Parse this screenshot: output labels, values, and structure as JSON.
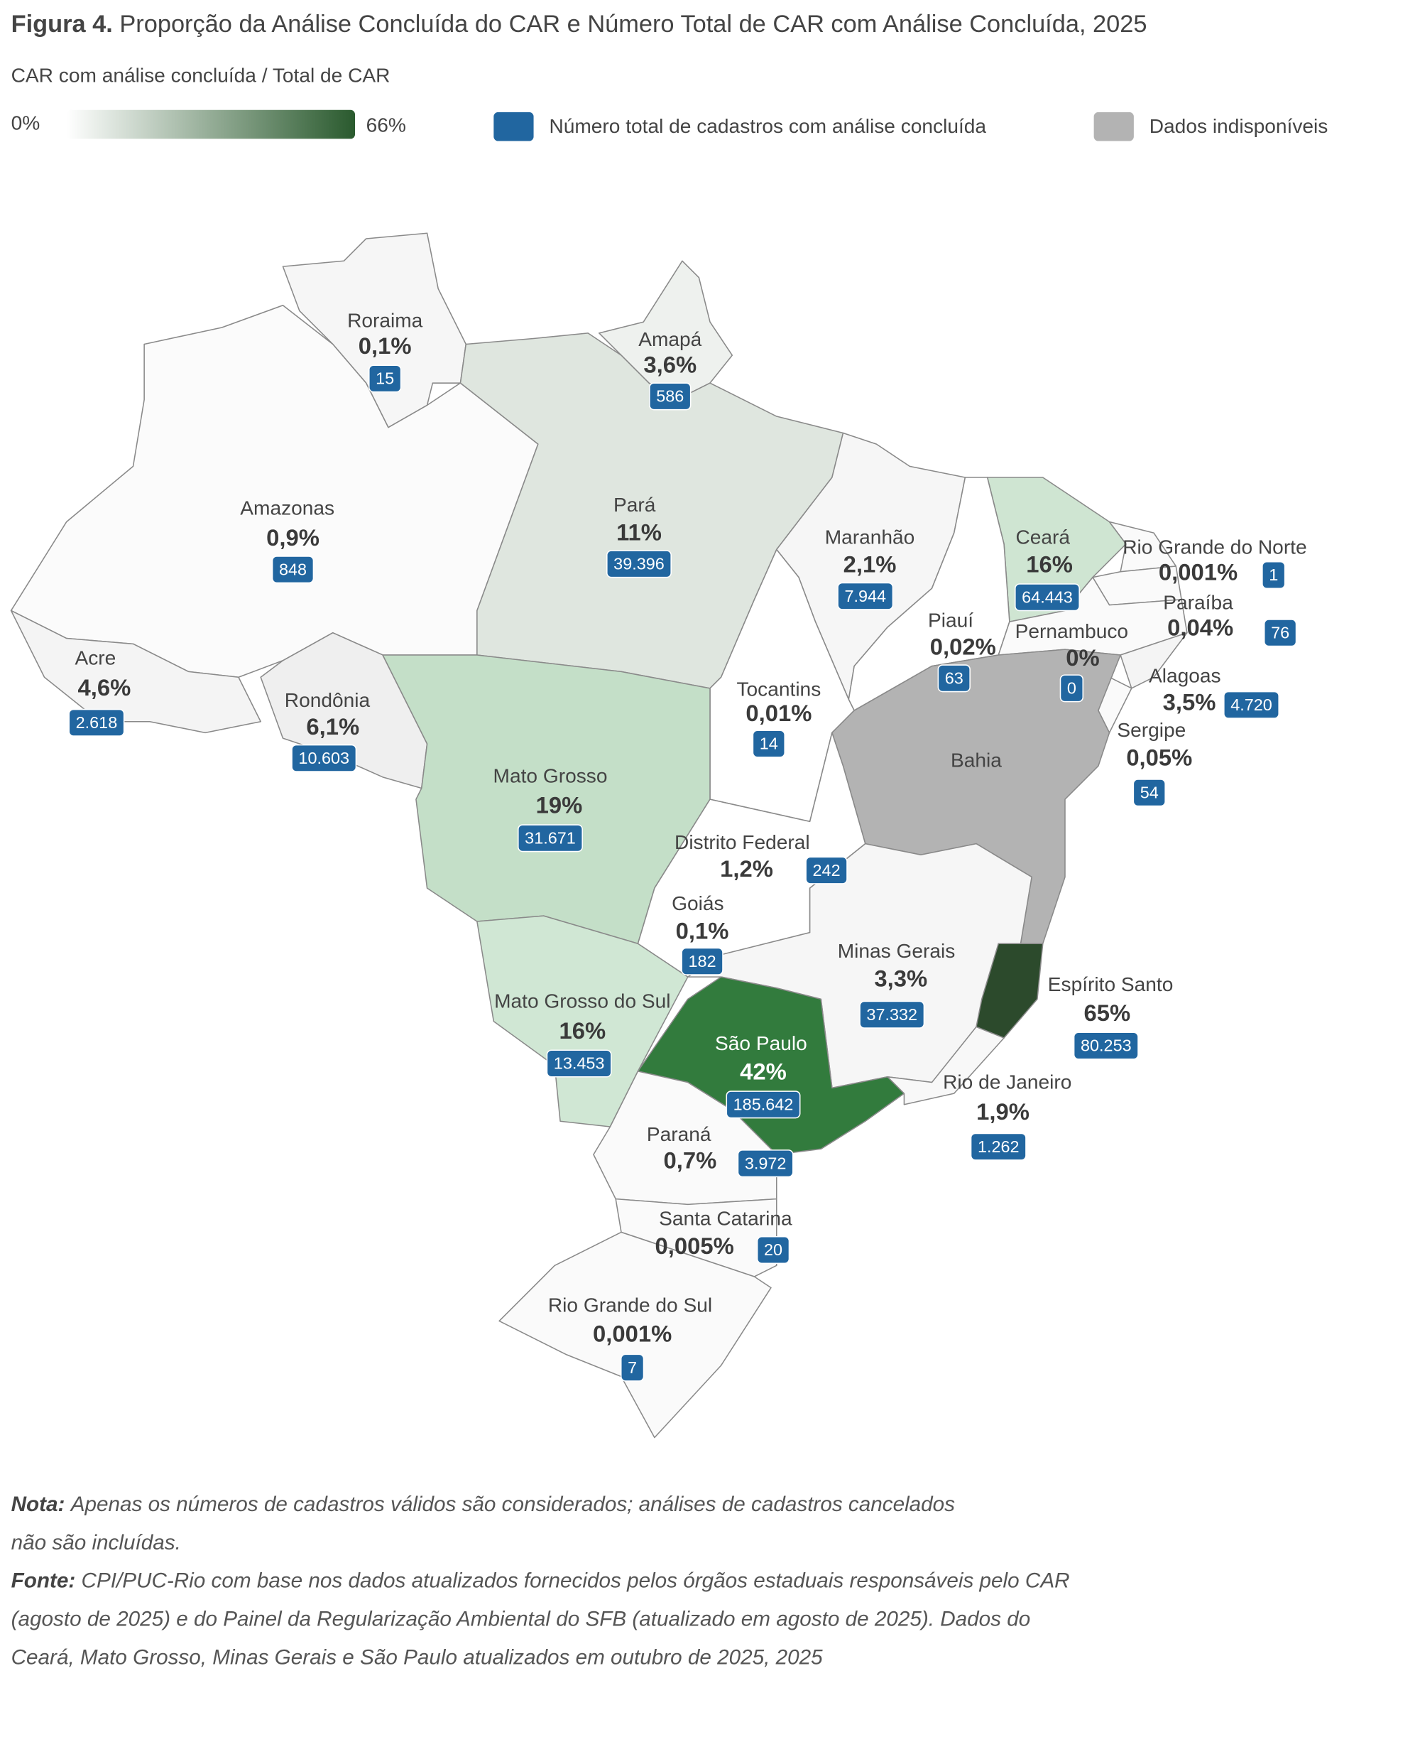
{
  "header": {
    "prefix": "Figura 4.",
    "title": "Proporção da Análise Concluída do CAR e Número Total de CAR com Análise Concluída, 2025",
    "subtitle": "CAR com análise concluída / Total de CAR"
  },
  "legend": {
    "scale_min": "0%",
    "scale_max": "66%",
    "scale_colors": [
      "#ffffff",
      "#2a5a2e"
    ],
    "total": {
      "label": "Número total de cadastros com análise concluída",
      "color": "#2166a0"
    },
    "missing": {
      "label": "Dados indisponíveis",
      "color": "#b3b3b3"
    }
  },
  "states": [
    {
      "name": "Roraima",
      "share": "0,1%",
      "count": "15",
      "fill": "#f6f6f6"
    },
    {
      "name": "Amapá",
      "share": "3,6%",
      "count": "586",
      "fill": "#eef1ee"
    },
    {
      "name": "Amazonas",
      "share": "0,9%",
      "count": "848",
      "fill": "#fbfbfb"
    },
    {
      "name": "Pará",
      "share": "11%",
      "count": "39.396",
      "fill": "#dfe6df"
    },
    {
      "name": "Maranhão",
      "share": "2,1%",
      "count": "7.944",
      "fill": "#f6f6f6"
    },
    {
      "name": "Ceará",
      "share": "16%",
      "count": "64.443",
      "fill": "#cfe5d2"
    },
    {
      "name": "Rio Grande do Norte",
      "share": "0,001%",
      "count": "1",
      "fill": "#fafafa"
    },
    {
      "name": "Paraíba",
      "share": "0,04%",
      "count": "76",
      "fill": "#fafafa"
    },
    {
      "name": "Piauí",
      "share": "0,02%",
      "count": "63",
      "fill": "#ffffff"
    },
    {
      "name": "Pernambuco",
      "share": "0%",
      "count": "0",
      "fill": "#fafafa"
    },
    {
      "name": "Alagoas",
      "share": "3,5%",
      "count": "4.720",
      "fill": "#f4f4f4"
    },
    {
      "name": "Sergipe",
      "share": "0,05%",
      "count": "54",
      "fill": "#fafafa"
    },
    {
      "name": "Tocantins",
      "share": "0,01%",
      "count": "14",
      "fill": "#ffffff"
    },
    {
      "name": "Acre",
      "share": "4,6%",
      "count": "2.618",
      "fill": "#f4f4f4"
    },
    {
      "name": "Rondônia",
      "share": "6,1%",
      "count": "10.603",
      "fill": "#efefef"
    },
    {
      "name": "Mato Grosso",
      "share": "19%",
      "count": "31.671",
      "fill": "#c4dfc8"
    },
    {
      "name": "Bahia",
      "fill": "#b3b3b3"
    },
    {
      "name": "Distrito Federal",
      "share": "1,2%",
      "count": "242",
      "fill": "#ffffff"
    },
    {
      "name": "Goiás",
      "share": "0,1%",
      "count": "182",
      "fill": "#ffffff"
    },
    {
      "name": "Minas Gerais",
      "share": "3,3%",
      "count": "37.332",
      "fill": "#f6f6f6"
    },
    {
      "name": "Espírito Santo",
      "share": "65%",
      "count": "80.253",
      "fill": "#2c4a2c"
    },
    {
      "name": "Mato Grosso do Sul",
      "share": "16%",
      "count": "13.453",
      "fill": "#d0e7d4"
    },
    {
      "name": "São Paulo",
      "share": "42%",
      "count": "185.642",
      "fill": "#327b3d"
    },
    {
      "name": "Rio de Janeiro",
      "share": "1,9%",
      "count": "1.262",
      "fill": "#f8f8f8"
    },
    {
      "name": "Paraná",
      "share": "0,7%",
      "count": "3.972",
      "fill": "#fafafa"
    },
    {
      "name": "Santa Catarina",
      "share": "0,005%",
      "count": "20",
      "fill": "#fafafa"
    },
    {
      "name": "Rio Grande do Sul",
      "share": "0,001%",
      "count": "7",
      "fill": "#fafafa"
    }
  ],
  "notes": {
    "note_label": "Nota:",
    "note_lines": [
      "Apenas os números de cadastros válidos são considerados; análises de cadastros cancelados",
      "não são incluídas."
    ],
    "source_label": "Fonte:",
    "source_lines": [
      "CPI/PUC-Rio com base nos dados atualizados fornecidos pelos órgãos estaduais responsáveis pelo CAR",
      "(agosto de 2025) e do Painel da Regularização Ambiental do SFB (atualizado em agosto de 2025). Dados do",
      "Ceará, Mato Grosso, Minas Gerais e São Paulo atualizados em outubro de 2025, 2025"
    ]
  }
}
